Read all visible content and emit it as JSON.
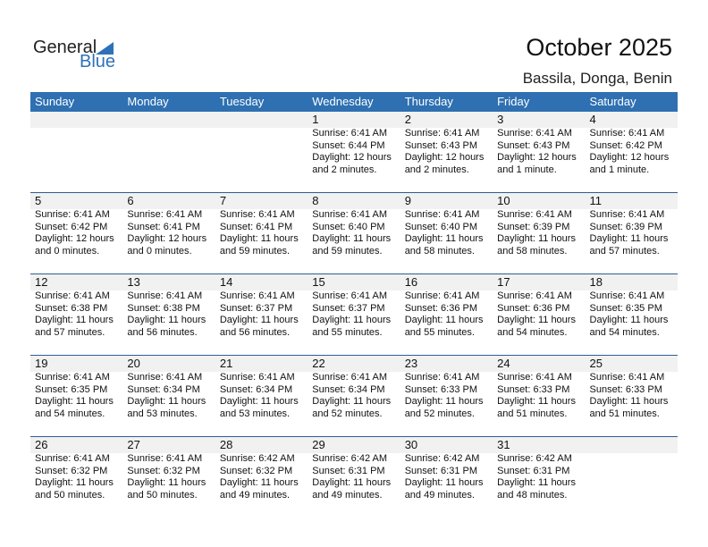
{
  "logo": {
    "text1": "General",
    "text2": "Blue"
  },
  "title": "October 2025",
  "location": "Bassila, Donga, Benin",
  "weekdays": [
    "Sunday",
    "Monday",
    "Tuesday",
    "Wednesday",
    "Thursday",
    "Friday",
    "Saturday"
  ],
  "weeks": [
    [
      null,
      null,
      null,
      {
        "day": "1",
        "sunrise": "Sunrise: 6:41 AM",
        "sunset": "Sunset: 6:44 PM",
        "daylight": "Daylight: 12 hours",
        "minutes": "and 2 minutes."
      },
      {
        "day": "2",
        "sunrise": "Sunrise: 6:41 AM",
        "sunset": "Sunset: 6:43 PM",
        "daylight": "Daylight: 12 hours",
        "minutes": "and 2 minutes."
      },
      {
        "day": "3",
        "sunrise": "Sunrise: 6:41 AM",
        "sunset": "Sunset: 6:43 PM",
        "daylight": "Daylight: 12 hours",
        "minutes": "and 1 minute."
      },
      {
        "day": "4",
        "sunrise": "Sunrise: 6:41 AM",
        "sunset": "Sunset: 6:42 PM",
        "daylight": "Daylight: 12 hours",
        "minutes": "and 1 minute."
      }
    ],
    [
      {
        "day": "5",
        "sunrise": "Sunrise: 6:41 AM",
        "sunset": "Sunset: 6:42 PM",
        "daylight": "Daylight: 12 hours",
        "minutes": "and 0 minutes."
      },
      {
        "day": "6",
        "sunrise": "Sunrise: 6:41 AM",
        "sunset": "Sunset: 6:41 PM",
        "daylight": "Daylight: 12 hours",
        "minutes": "and 0 minutes."
      },
      {
        "day": "7",
        "sunrise": "Sunrise: 6:41 AM",
        "sunset": "Sunset: 6:41 PM",
        "daylight": "Daylight: 11 hours",
        "minutes": "and 59 minutes."
      },
      {
        "day": "8",
        "sunrise": "Sunrise: 6:41 AM",
        "sunset": "Sunset: 6:40 PM",
        "daylight": "Daylight: 11 hours",
        "minutes": "and 59 minutes."
      },
      {
        "day": "9",
        "sunrise": "Sunrise: 6:41 AM",
        "sunset": "Sunset: 6:40 PM",
        "daylight": "Daylight: 11 hours",
        "minutes": "and 58 minutes."
      },
      {
        "day": "10",
        "sunrise": "Sunrise: 6:41 AM",
        "sunset": "Sunset: 6:39 PM",
        "daylight": "Daylight: 11 hours",
        "minutes": "and 58 minutes."
      },
      {
        "day": "11",
        "sunrise": "Sunrise: 6:41 AM",
        "sunset": "Sunset: 6:39 PM",
        "daylight": "Daylight: 11 hours",
        "minutes": "and 57 minutes."
      }
    ],
    [
      {
        "day": "12",
        "sunrise": "Sunrise: 6:41 AM",
        "sunset": "Sunset: 6:38 PM",
        "daylight": "Daylight: 11 hours",
        "minutes": "and 57 minutes."
      },
      {
        "day": "13",
        "sunrise": "Sunrise: 6:41 AM",
        "sunset": "Sunset: 6:38 PM",
        "daylight": "Daylight: 11 hours",
        "minutes": "and 56 minutes."
      },
      {
        "day": "14",
        "sunrise": "Sunrise: 6:41 AM",
        "sunset": "Sunset: 6:37 PM",
        "daylight": "Daylight: 11 hours",
        "minutes": "and 56 minutes."
      },
      {
        "day": "15",
        "sunrise": "Sunrise: 6:41 AM",
        "sunset": "Sunset: 6:37 PM",
        "daylight": "Daylight: 11 hours",
        "minutes": "and 55 minutes."
      },
      {
        "day": "16",
        "sunrise": "Sunrise: 6:41 AM",
        "sunset": "Sunset: 6:36 PM",
        "daylight": "Daylight: 11 hours",
        "minutes": "and 55 minutes."
      },
      {
        "day": "17",
        "sunrise": "Sunrise: 6:41 AM",
        "sunset": "Sunset: 6:36 PM",
        "daylight": "Daylight: 11 hours",
        "minutes": "and 54 minutes."
      },
      {
        "day": "18",
        "sunrise": "Sunrise: 6:41 AM",
        "sunset": "Sunset: 6:35 PM",
        "daylight": "Daylight: 11 hours",
        "minutes": "and 54 minutes."
      }
    ],
    [
      {
        "day": "19",
        "sunrise": "Sunrise: 6:41 AM",
        "sunset": "Sunset: 6:35 PM",
        "daylight": "Daylight: 11 hours",
        "minutes": "and 54 minutes."
      },
      {
        "day": "20",
        "sunrise": "Sunrise: 6:41 AM",
        "sunset": "Sunset: 6:34 PM",
        "daylight": "Daylight: 11 hours",
        "minutes": "and 53 minutes."
      },
      {
        "day": "21",
        "sunrise": "Sunrise: 6:41 AM",
        "sunset": "Sunset: 6:34 PM",
        "daylight": "Daylight: 11 hours",
        "minutes": "and 53 minutes."
      },
      {
        "day": "22",
        "sunrise": "Sunrise: 6:41 AM",
        "sunset": "Sunset: 6:34 PM",
        "daylight": "Daylight: 11 hours",
        "minutes": "and 52 minutes."
      },
      {
        "day": "23",
        "sunrise": "Sunrise: 6:41 AM",
        "sunset": "Sunset: 6:33 PM",
        "daylight": "Daylight: 11 hours",
        "minutes": "and 52 minutes."
      },
      {
        "day": "24",
        "sunrise": "Sunrise: 6:41 AM",
        "sunset": "Sunset: 6:33 PM",
        "daylight": "Daylight: 11 hours",
        "minutes": "and 51 minutes."
      },
      {
        "day": "25",
        "sunrise": "Sunrise: 6:41 AM",
        "sunset": "Sunset: 6:33 PM",
        "daylight": "Daylight: 11 hours",
        "minutes": "and 51 minutes."
      }
    ],
    [
      {
        "day": "26",
        "sunrise": "Sunrise: 6:41 AM",
        "sunset": "Sunset: 6:32 PM",
        "daylight": "Daylight: 11 hours",
        "minutes": "and 50 minutes."
      },
      {
        "day": "27",
        "sunrise": "Sunrise: 6:41 AM",
        "sunset": "Sunset: 6:32 PM",
        "daylight": "Daylight: 11 hours",
        "minutes": "and 50 minutes."
      },
      {
        "day": "28",
        "sunrise": "Sunrise: 6:42 AM",
        "sunset": "Sunset: 6:32 PM",
        "daylight": "Daylight: 11 hours",
        "minutes": "and 49 minutes."
      },
      {
        "day": "29",
        "sunrise": "Sunrise: 6:42 AM",
        "sunset": "Sunset: 6:31 PM",
        "daylight": "Daylight: 11 hours",
        "minutes": "and 49 minutes."
      },
      {
        "day": "30",
        "sunrise": "Sunrise: 6:42 AM",
        "sunset": "Sunset: 6:31 PM",
        "daylight": "Daylight: 11 hours",
        "minutes": "and 49 minutes."
      },
      {
        "day": "31",
        "sunrise": "Sunrise: 6:42 AM",
        "sunset": "Sunset: 6:31 PM",
        "daylight": "Daylight: 11 hours",
        "minutes": "and 48 minutes."
      },
      null
    ]
  ]
}
